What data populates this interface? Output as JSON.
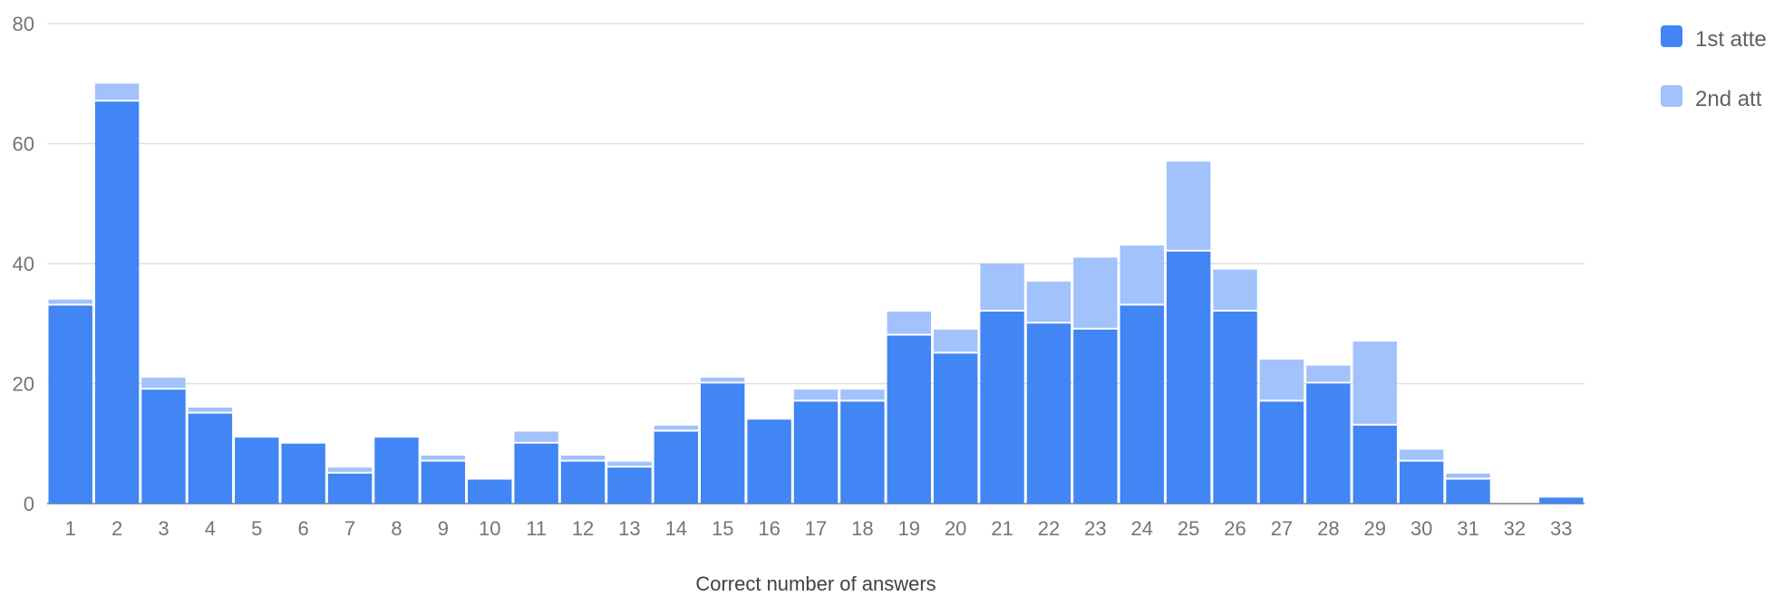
{
  "chart_data": {
    "type": "bar",
    "stacked": true,
    "title": "",
    "xlabel": "Correct number of answers",
    "ylabel": "",
    "ylim": [
      0,
      80
    ],
    "yticks": [
      0,
      20,
      40,
      60,
      80
    ],
    "grid": true,
    "legend_position": "right",
    "categories": [
      "1",
      "2",
      "3",
      "4",
      "5",
      "6",
      "7",
      "8",
      "9",
      "10",
      "11",
      "12",
      "13",
      "14",
      "15",
      "16",
      "17",
      "18",
      "19",
      "20",
      "21",
      "22",
      "23",
      "24",
      "25",
      "26",
      "27",
      "28",
      "29",
      "30",
      "31",
      "32",
      "33"
    ],
    "series": [
      {
        "name": "1st atte",
        "color": "#4285f4",
        "values": [
          33,
          67,
          19,
          15,
          11,
          10,
          5,
          11,
          7,
          4,
          10,
          7,
          6,
          12,
          20,
          14,
          17,
          17,
          28,
          25,
          32,
          30,
          29,
          33,
          42,
          32,
          17,
          20,
          13,
          7,
          4,
          0,
          1
        ]
      },
      {
        "name": "2nd att",
        "color": "#a1c2fa",
        "values": [
          1,
          3,
          2,
          1,
          0,
          0,
          1,
          0,
          1,
          0,
          2,
          1,
          1,
          1,
          1,
          0,
          2,
          2,
          4,
          4,
          8,
          7,
          12,
          10,
          15,
          7,
          7,
          3,
          14,
          2,
          1,
          0,
          0
        ]
      }
    ]
  }
}
